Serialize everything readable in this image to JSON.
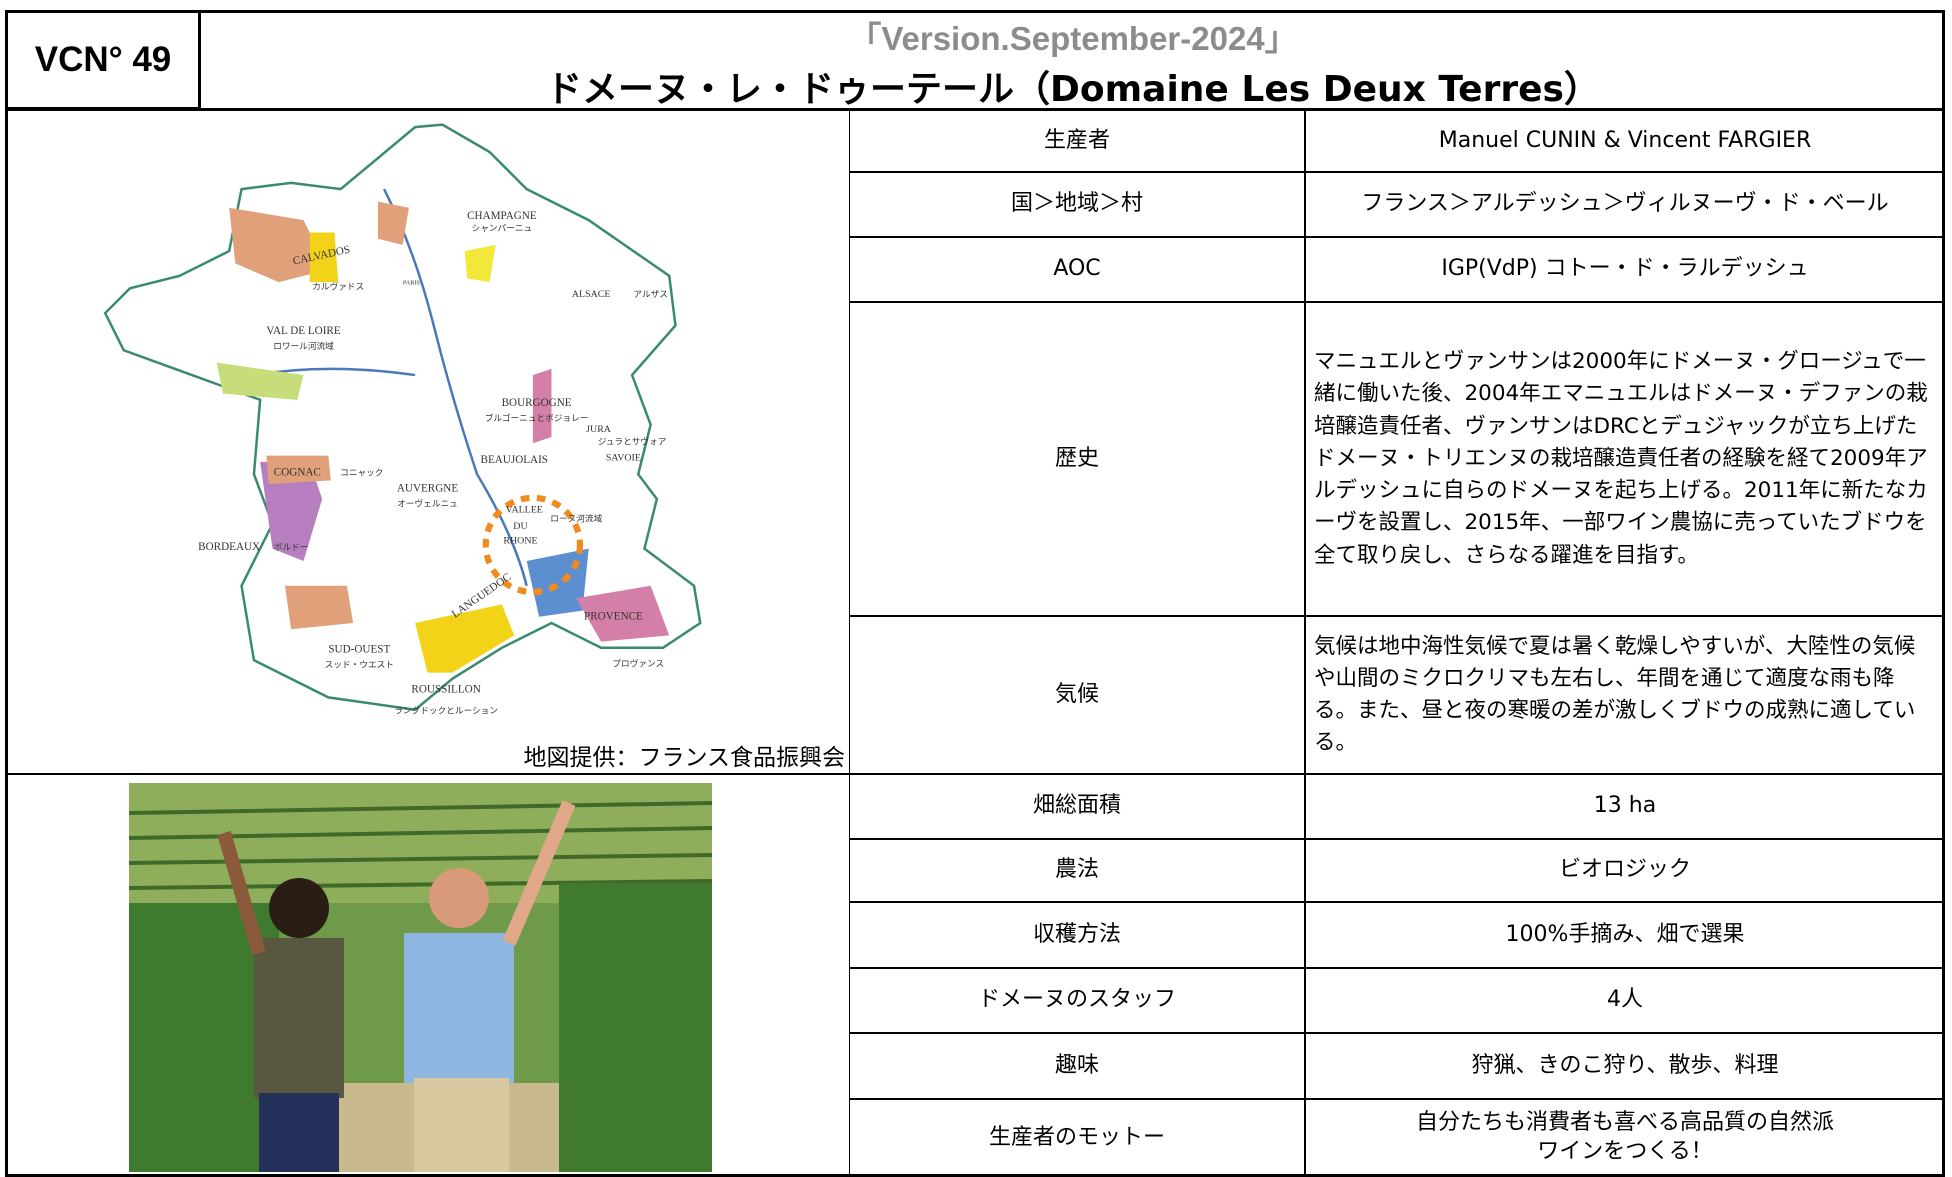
{
  "header": {
    "id": "VCN° 49",
    "version": "「Version.September-2024」",
    "title": "ドメーヌ・レ・ドゥーテール（Domaine Les Deux Terres）"
  },
  "map": {
    "caption": "地図提供：フランス食品振興会",
    "labels": [
      "CHAMPAGNE",
      "シャンパーニュ",
      "CALVADOS",
      "カルヴァドス",
      "PARIS",
      "ALSACE",
      "アルザス",
      "VAL DE LOIRE",
      "ロワール河流域",
      "BOURGOGNE",
      "ブルゴーニュとボジョレー",
      "JURA",
      "ジュラとサヴォア",
      "BEAUJOLAIS",
      "SAVOIE",
      "COGNAC",
      "コニャック",
      "AUVERGNE",
      "オーヴェルニュ",
      "VALLEE",
      "DU",
      "RHONE",
      "ローヌ河流域",
      "BORDEAUX",
      "ボルドー",
      "LANGUEDOC",
      "PROVENCE",
      "SUD-OUEST",
      "スッド・ウエスト",
      "プロヴァンス",
      "ROUSSILLON",
      "ラングドックとルーション"
    ]
  },
  "table": {
    "rows": [
      [
        "生産者",
        "Manuel CUNIN & Vincent FARGIER"
      ],
      [
        "国＞地域＞村",
        "フランス＞アルデッシュ＞ヴィルヌーヴ・ド・ベール"
      ],
      [
        "AOC",
        "IGP(VdP) コトー・ド・ラルデッシュ"
      ],
      [
        "歴史",
        "マニュエルとヴァンサンは2000年にドメーヌ・グロージュで一緒に働いた後、2004年エマニュエルはドメーヌ・デファンの栽培醸造責任者、ヴァンサンはDRCとデュジャックが立ち上げたドメーヌ・トリエンヌの栽培醸造責任者の経験を経て2009年アルデッシュに自らのドメーヌを起ち上げる。2011年に新たなカーヴを設置し、2015年、一部ワイン農協に売っていたブドウを全て取り戻し、さらなる躍進を目指す。"
      ],
      [
        "気候",
        "気候は地中海性気候で夏は暑く乾燥しやすいが、大陸性の気候や山間のミクロクリマも左右し、年間を通じて適度な雨も降る。また、昼と夜の寒暖の差が激しくブドウの成熟に適している。"
      ],
      [
        "畑総面積",
        "13 ha"
      ],
      [
        "農法",
        "ビオロジック"
      ],
      [
        "収穫方法",
        "100%手摘み、畑で選果"
      ],
      [
        "ドメーヌのスタッフ",
        "4人"
      ],
      [
        "趣味",
        "狩猟、きのこ狩り、散歩、料理"
      ],
      [
        "生産者のモットー",
        "自分たちも消費者も喜べる高品質の自然派ワインをつくる！"
      ]
    ]
  }
}
